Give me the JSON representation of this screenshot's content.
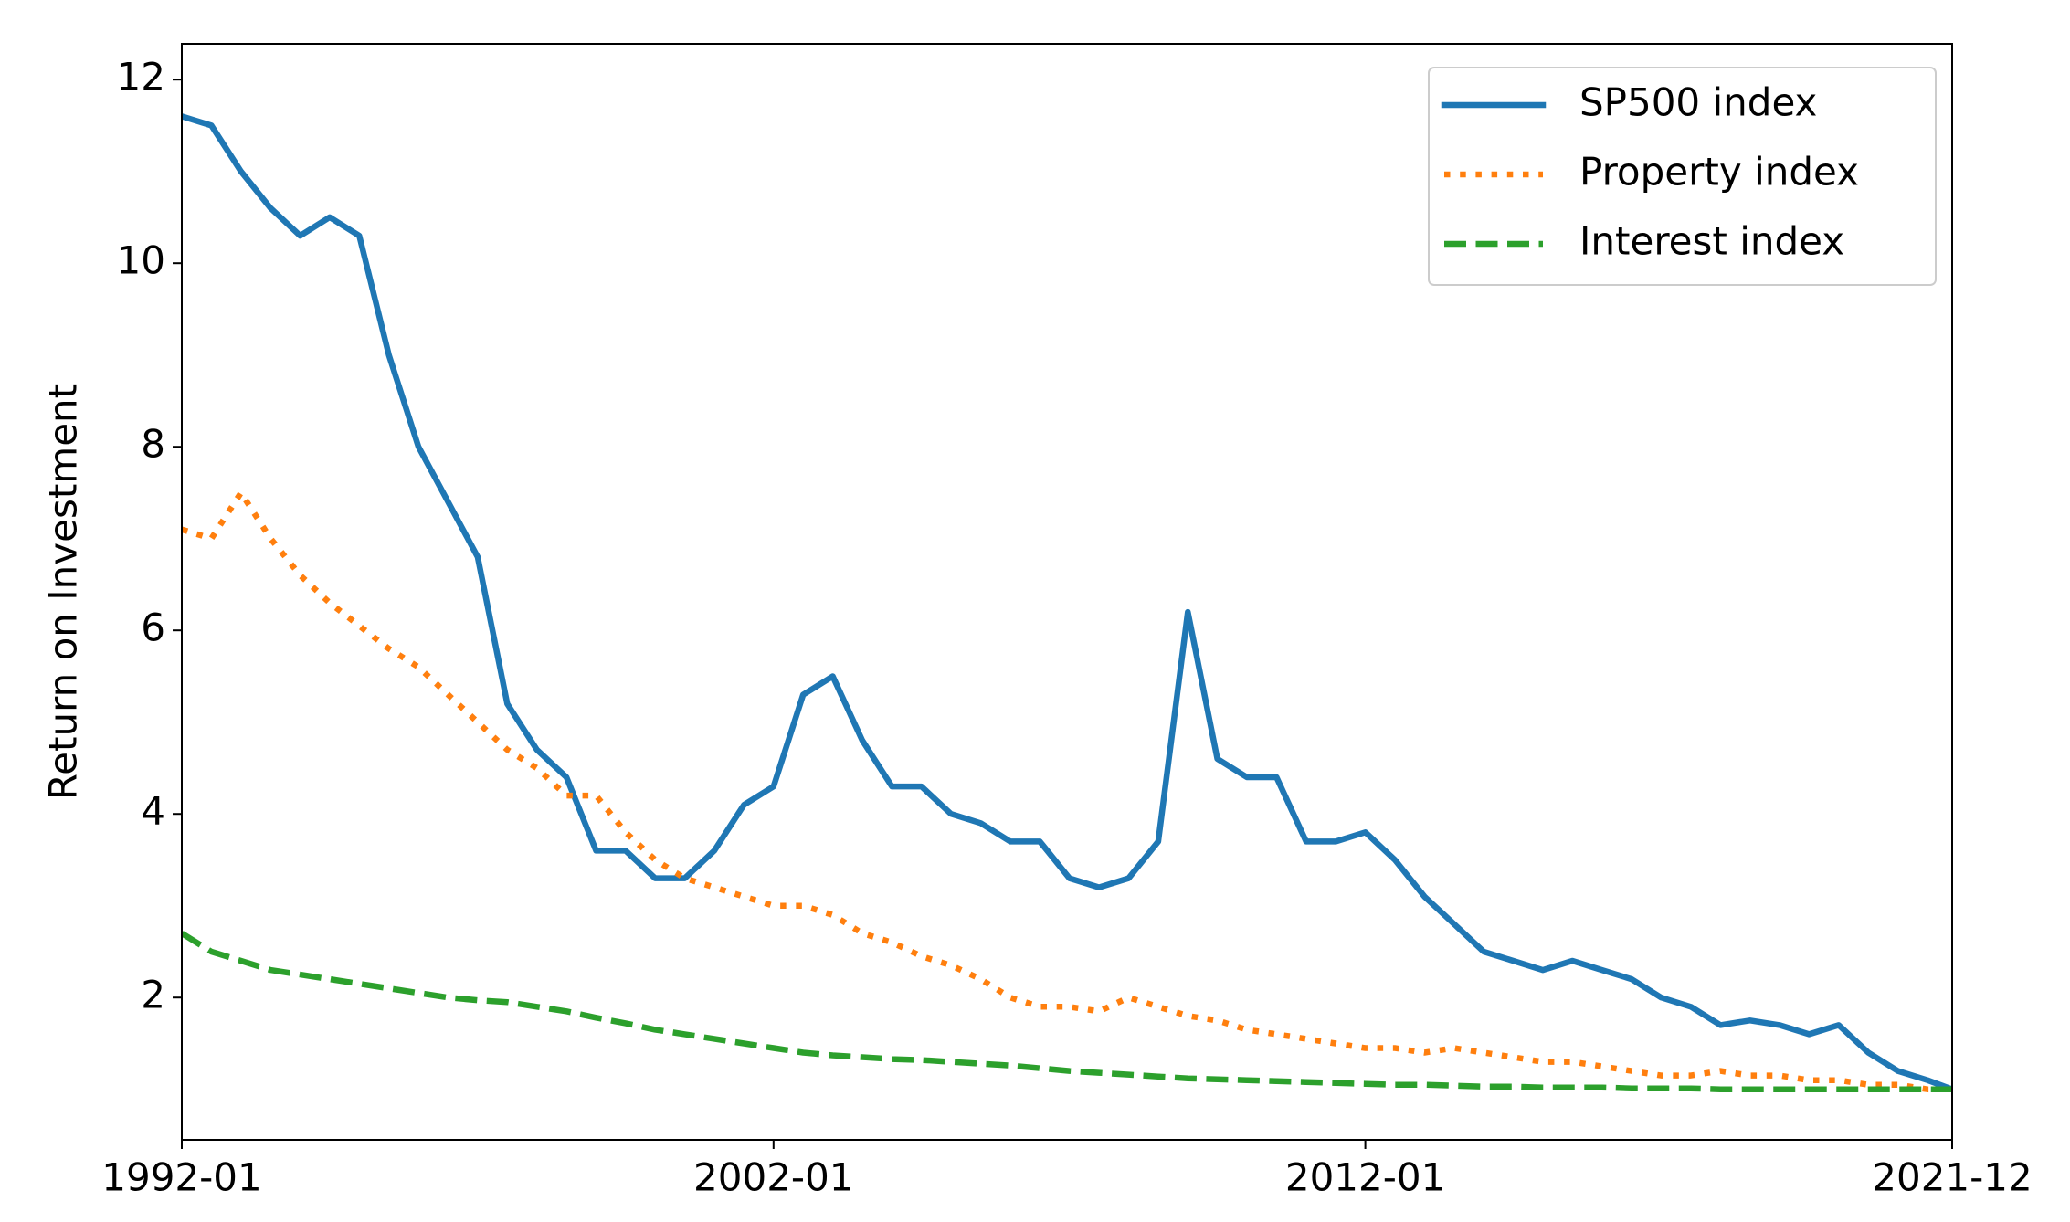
{
  "chart_data": {
    "type": "line",
    "y_label": "Return on Investment",
    "x": [
      "1992-01",
      "1992-07",
      "1993-01",
      "1993-07",
      "1994-01",
      "1994-07",
      "1995-01",
      "1995-07",
      "1996-01",
      "1996-07",
      "1997-01",
      "1997-07",
      "1998-01",
      "1998-07",
      "1999-01",
      "1999-07",
      "2000-01",
      "2000-07",
      "2001-01",
      "2001-07",
      "2002-01",
      "2002-07",
      "2003-01",
      "2003-07",
      "2004-01",
      "2004-07",
      "2005-01",
      "2005-07",
      "2006-01",
      "2006-07",
      "2007-01",
      "2007-07",
      "2008-01",
      "2008-07",
      "2009-01",
      "2009-07",
      "2010-01",
      "2010-07",
      "2011-01",
      "2011-07",
      "2012-01",
      "2012-07",
      "2013-01",
      "2013-07",
      "2014-01",
      "2014-07",
      "2015-01",
      "2015-07",
      "2016-01",
      "2016-07",
      "2017-01",
      "2017-07",
      "2018-01",
      "2018-07",
      "2019-01",
      "2019-07",
      "2020-01",
      "2020-07",
      "2021-01",
      "2021-07",
      "2021-12"
    ],
    "series": [
      {
        "name": "SP500 index",
        "color": "#1f77b4",
        "style": "solid",
        "values": [
          11.6,
          11.5,
          11.0,
          10.6,
          10.3,
          10.5,
          10.3,
          9.0,
          8.0,
          7.4,
          6.8,
          5.2,
          4.7,
          4.4,
          3.6,
          3.6,
          3.3,
          3.3,
          3.6,
          4.1,
          4.3,
          5.3,
          5.5,
          4.8,
          4.3,
          4.3,
          4.0,
          3.9,
          3.7,
          3.7,
          3.3,
          3.2,
          3.3,
          3.7,
          6.2,
          4.6,
          4.4,
          4.4,
          3.7,
          3.7,
          3.8,
          3.5,
          3.1,
          2.8,
          2.5,
          2.4,
          2.3,
          2.4,
          2.3,
          2.2,
          2.0,
          1.9,
          1.7,
          1.75,
          1.7,
          1.6,
          1.7,
          1.4,
          1.2,
          1.1,
          1.0
        ]
      },
      {
        "name": "Property index",
        "color": "#ff7f0e",
        "style": "dotted",
        "values": [
          7.1,
          7.0,
          7.5,
          7.0,
          6.6,
          6.3,
          6.05,
          5.8,
          5.6,
          5.3,
          5.0,
          4.7,
          4.5,
          4.2,
          4.2,
          3.8,
          3.5,
          3.3,
          3.2,
          3.1,
          3.0,
          3.0,
          2.9,
          2.7,
          2.6,
          2.45,
          2.35,
          2.2,
          2.0,
          1.9,
          1.9,
          1.85,
          2.0,
          1.9,
          1.8,
          1.75,
          1.65,
          1.6,
          1.55,
          1.5,
          1.45,
          1.45,
          1.4,
          1.45,
          1.4,
          1.35,
          1.3,
          1.3,
          1.25,
          1.2,
          1.15,
          1.15,
          1.2,
          1.15,
          1.15,
          1.1,
          1.1,
          1.05,
          1.05,
          1.0,
          1.0
        ]
      },
      {
        "name": "Interest index",
        "color": "#2ca02c",
        "style": "dashed",
        "values": [
          2.7,
          2.5,
          2.4,
          2.3,
          2.25,
          2.2,
          2.15,
          2.1,
          2.05,
          2.0,
          1.97,
          1.95,
          1.9,
          1.85,
          1.78,
          1.72,
          1.65,
          1.6,
          1.55,
          1.5,
          1.45,
          1.4,
          1.37,
          1.35,
          1.33,
          1.32,
          1.3,
          1.28,
          1.26,
          1.23,
          1.2,
          1.18,
          1.16,
          1.14,
          1.12,
          1.11,
          1.1,
          1.09,
          1.08,
          1.07,
          1.06,
          1.05,
          1.05,
          1.04,
          1.03,
          1.03,
          1.02,
          1.02,
          1.02,
          1.01,
          1.01,
          1.01,
          1.0,
          1.0,
          1.0,
          1.0,
          1.0,
          1.0,
          1.0,
          1.0,
          1.0
        ]
      }
    ],
    "xlim": [
      "1992-01",
      "2021-12"
    ],
    "xticks": [
      "1992-01",
      "2002-01",
      "2012-01",
      "2021-12"
    ],
    "ylim": [
      0.45,
      12.39
    ],
    "yticks": [
      2,
      4,
      6,
      8,
      10,
      12
    ],
    "grid": false,
    "legend": "upper right"
  }
}
